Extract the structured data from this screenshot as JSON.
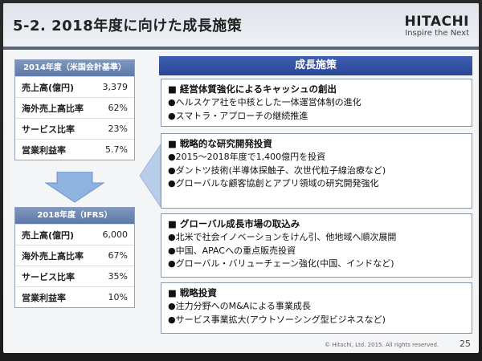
{
  "header": {
    "title": "5-2. 2018年度に向けた成長施策",
    "brand": "HITACHI",
    "tagline": "Inspire the Next"
  },
  "left_panels": [
    {
      "heading": "2014年度（米国会計基準）",
      "rows": [
        {
          "label": "売上高(億円)",
          "value": "3,379"
        },
        {
          "label": "海外売上高比率",
          "value": "62%"
        },
        {
          "label": "サービス比率",
          "value": "23%"
        },
        {
          "label": "営業利益率",
          "value": "5.7%"
        }
      ]
    },
    {
      "heading": "2018年度（IFRS）",
      "rows": [
        {
          "label": "売上高(億円)",
          "value": "6,000"
        },
        {
          "label": "海外売上高比率",
          "value": "67%"
        },
        {
          "label": "サービス比率",
          "value": "35%"
        },
        {
          "label": "営業利益率",
          "value": "10%"
        }
      ]
    }
  ],
  "section_heading": "成長施策",
  "boxes": [
    {
      "title": "■ 経営体質強化によるキャッシュの創出",
      "items": [
        "●ヘルスケア社を中核とした一体運営体制の進化",
        "●スマトラ・アプローチの継続推進"
      ]
    },
    {
      "title": "■ 戦略的な研究開発投資",
      "items": [
        "●2015～2018年度で1,400億円を投資",
        "●ダントツ技術(半導体探触子、次世代粒子線治療など)",
        "●グローバルな顧客協創とアプリ領域の研究開発強化"
      ]
    },
    {
      "title": "■ グローバル成長市場の取込み",
      "items": [
        "●北米で社会イノベーションをけん引、他地域へ順次展開",
        "●中国、APACへの重点販売投資",
        "●グローバル・バリューチェーン強化(中国、インドなど)"
      ]
    },
    {
      "title": "■ 戦略投資",
      "items": [
        "●注力分野へのM&Aによる事業成長",
        "●サービス事業拡大(アウトソーシング型ビジネスなど)"
      ]
    }
  ],
  "footer": {
    "copyright": "© Hitachi, Ltd. 2015. All rights reserved.",
    "page": "25"
  },
  "colors": {
    "section_blue": "#2b4696",
    "panel_blue": "#5d79a8",
    "arrow_blue": "#8fb3e0"
  }
}
